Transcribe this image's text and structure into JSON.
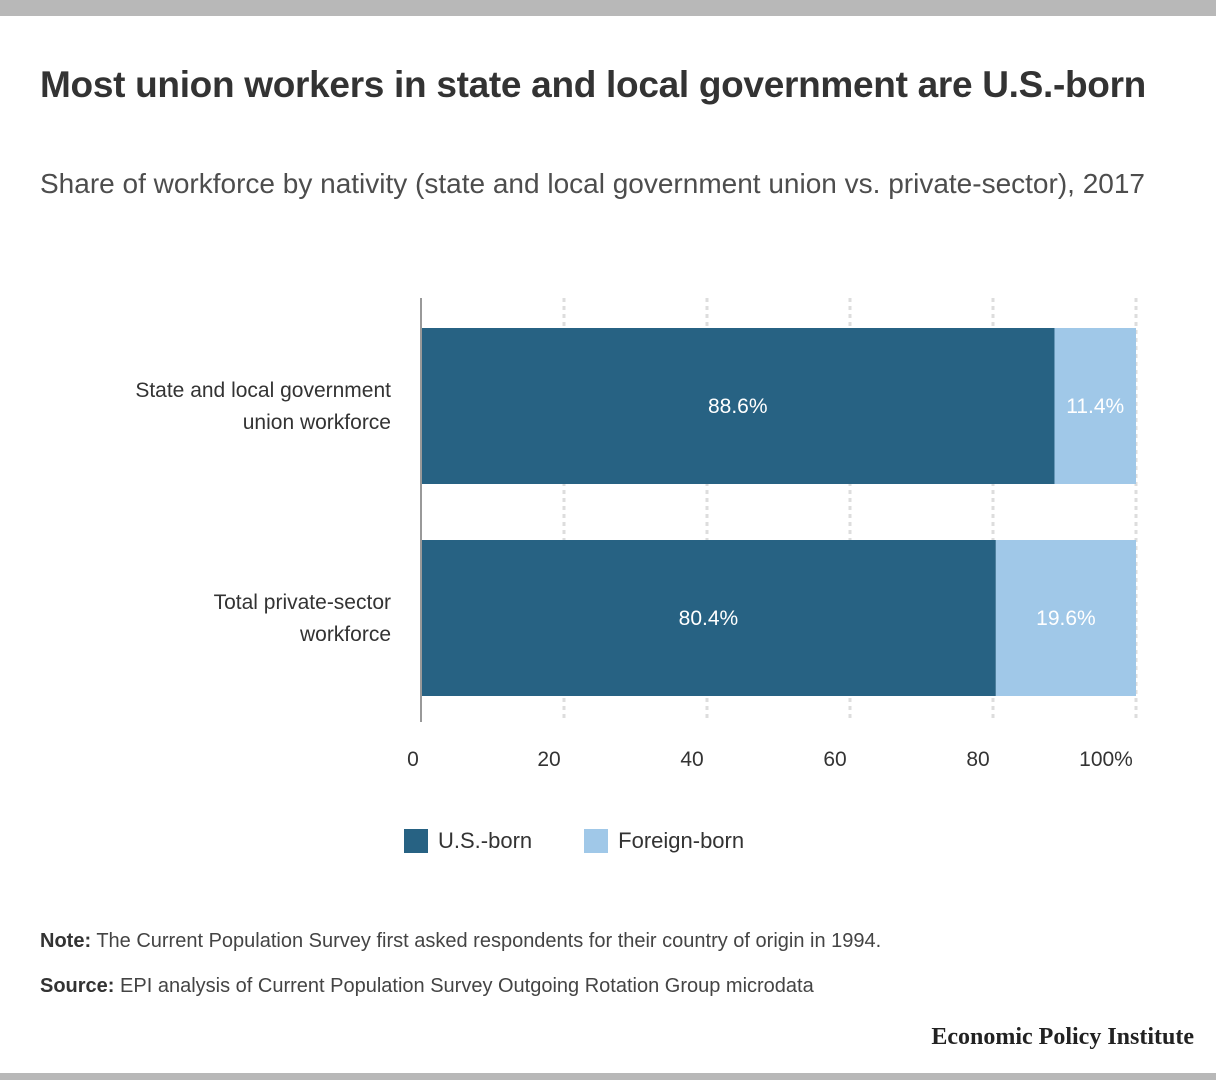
{
  "header": {
    "title": "Most union workers in state and local government are U.S.-born",
    "subtitle": "Share of workforce by nativity (state and local government union vs. private-sector), 2017"
  },
  "colors": {
    "us_born": "#276283",
    "foreign_born": "#a0c8e8",
    "grid": "#dddddd",
    "axis": "#999999"
  },
  "chart_data": {
    "type": "bar",
    "orientation": "horizontal",
    "stacked": true,
    "categories": [
      "State and local government union workforce",
      "Total private-sector workforce"
    ],
    "category_lines": [
      [
        "State and local government",
        "union workforce"
      ],
      [
        "Total private-sector",
        "workforce"
      ]
    ],
    "series": [
      {
        "name": "U.S.-born",
        "values": [
          88.6,
          80.4
        ],
        "labels": [
          "88.6%",
          "80.4%"
        ],
        "color": "#276283",
        "label_color": "#ffffff"
      },
      {
        "name": "Foreign-born",
        "values": [
          11.4,
          19.6
        ],
        "labels": [
          "11.4%",
          "19.6%"
        ],
        "color": "#a0c8e8",
        "label_color": "#ffffff"
      }
    ],
    "xlim": [
      0,
      100
    ],
    "x_ticks": [
      0,
      20,
      40,
      60,
      80,
      100
    ],
    "x_tick_labels": [
      "0",
      "20",
      "40",
      "60",
      "80",
      "100%"
    ],
    "grid": true,
    "legend_position": "bottom"
  },
  "legend": {
    "items": [
      {
        "label": "U.S.-born",
        "color": "#276283"
      },
      {
        "label": "Foreign-born",
        "color": "#a0c8e8"
      }
    ]
  },
  "footer": {
    "note_label": "Note:",
    "note_text": "The Current Population Survey first asked respondents for their country of origin in 1994.",
    "source_label": "Source:",
    "source_text": "EPI analysis of Current Population Survey Outgoing Rotation Group microdata",
    "brand": "Economic Policy Institute"
  }
}
